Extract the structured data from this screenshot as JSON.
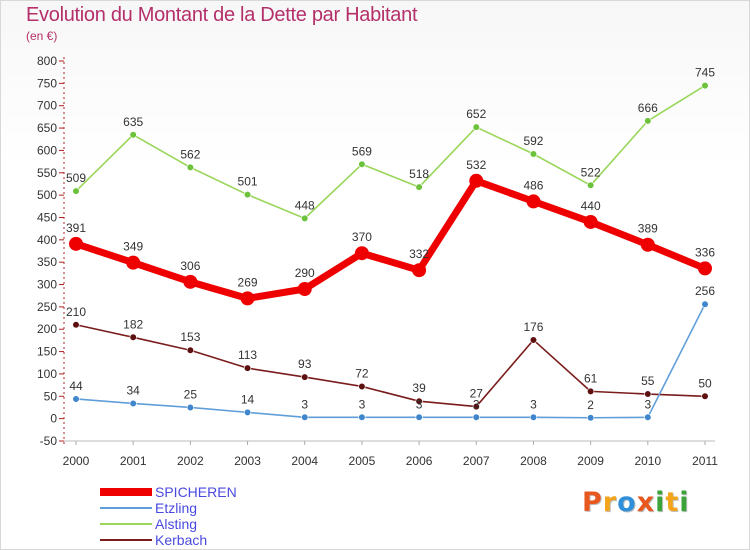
{
  "title": "Evolution du Montant de la Dette par Habitant",
  "subtitle": "(en €)",
  "logo": {
    "text": "Proxiti",
    "letters": [
      "P",
      "r",
      "o",
      "x",
      "i",
      "t",
      "i"
    ],
    "colors": [
      "#e8571e",
      "#f2a51a",
      "#2f8fd8",
      "#e8571e",
      "#3aa33a",
      "#f2a51a",
      "#3aa33a"
    ]
  },
  "chart_data": {
    "type": "line",
    "categories": [
      "2000",
      "2001",
      "2002",
      "2003",
      "2004",
      "2005",
      "2006",
      "2007",
      "2008",
      "2009",
      "2010",
      "2011"
    ],
    "ylim": [
      -50,
      800
    ],
    "yticks": [
      "-50",
      "0",
      "50",
      "100",
      "150",
      "200",
      "250",
      "300",
      "350",
      "400",
      "450",
      "500",
      "550",
      "600",
      "650",
      "700",
      "750",
      "800"
    ],
    "grid": false,
    "legend_position": "bottom-left",
    "series": [
      {
        "name": "Alsting",
        "color": "#99d65a",
        "marker": "#6cc23a",
        "values": [
          509,
          635,
          562,
          501,
          448,
          569,
          518,
          652,
          592,
          522,
          666,
          745
        ]
      },
      {
        "name": "Kerbach",
        "color": "#7a1c1c",
        "marker": "#5e1010",
        "values": [
          210,
          182,
          153,
          113,
          93,
          72,
          39,
          27,
          176,
          61,
          55,
          50
        ]
      },
      {
        "name": "Etzling",
        "color": "#5f9ed8",
        "marker": "#3f86cc",
        "values": [
          44,
          34,
          25,
          14,
          3,
          3,
          3,
          3,
          3,
          2,
          3,
          256
        ]
      },
      {
        "name": "SPICHEREN",
        "color": "#ee0000",
        "marker": "#ee0000",
        "values": [
          391,
          349,
          306,
          269,
          290,
          370,
          332,
          532,
          486,
          440,
          389,
          336
        ]
      }
    ],
    "legend_order": [
      "SPICHEREN",
      "Etzling",
      "Alsting",
      "Kerbach"
    ]
  }
}
